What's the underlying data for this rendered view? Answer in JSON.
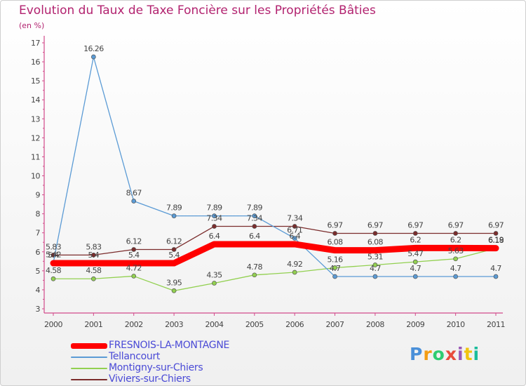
{
  "header": {
    "title": "Evolution du Taux de Taxe Foncière sur les Propriétés Bâties",
    "subtitle": "(en %)"
  },
  "logo": {
    "text": "Proxiti",
    "colors": [
      "#4a90d9",
      "#f39c12",
      "#2ecc71",
      "#e74c3c",
      "#9b59b6",
      "#f1c40f",
      "#1abc9c"
    ]
  },
  "chart_data": {
    "type": "line",
    "title": "Evolution du Taux de Taxe Foncière sur les Propriétés Bâties",
    "ylabel": "(en %)",
    "xlabel": "",
    "ylim": [
      3,
      17
    ],
    "yticks": [
      3,
      4,
      5,
      6,
      7,
      8,
      9,
      10,
      11,
      12,
      13,
      14,
      15,
      16,
      17
    ],
    "grid": false,
    "legend_position": "bottom-left",
    "categories": [
      "2000",
      "2001",
      "2002",
      "2003",
      "2004",
      "2005",
      "2006",
      "2007",
      "2008",
      "2009",
      "2010",
      "2011"
    ],
    "series": [
      {
        "name": "FRESNOIS-LA-MONTAGNE",
        "color": "#ff0000",
        "values": [
          5.4,
          5.4,
          5.4,
          5.4,
          6.4,
          6.4,
          6.4,
          6.08,
          6.08,
          6.2,
          6.2,
          6.19
        ],
        "labels": [
          "5.4",
          "5.4",
          "5.4",
          "5.4",
          "6.4",
          "6.4",
          "6.4",
          "6.08",
          "6.08",
          "6.2",
          "6.2",
          "6.19"
        ]
      },
      {
        "name": "Tellancourt",
        "color": "#5b9bd5",
        "values": [
          5.42,
          16.26,
          8.67,
          7.89,
          7.89,
          7.89,
          6.71,
          4.7,
          4.7,
          4.7,
          4.7,
          4.7
        ],
        "labels": [
          "5.42",
          "16.26",
          "8.67",
          "7.89",
          "7.89",
          "7.89",
          "6.71",
          "4.7",
          "4.7",
          "4.7",
          "4.7",
          "4.7"
        ]
      },
      {
        "name": "Montigny-sur-Chiers",
        "color": "#92d050",
        "values": [
          4.58,
          4.58,
          4.72,
          3.95,
          4.35,
          4.78,
          4.92,
          5.16,
          5.31,
          5.47,
          5.63,
          6.18
        ],
        "labels": [
          "4.58",
          "4.58",
          "4.72",
          "3.95",
          "4.35",
          "4.78",
          "4.92",
          "5.16",
          "5.31",
          "5.47",
          "5.63",
          "6.18"
        ]
      },
      {
        "name": "Viviers-sur-Chiers",
        "color": "#7b2c2c",
        "values": [
          5.83,
          5.83,
          6.12,
          6.12,
          7.34,
          7.34,
          7.34,
          6.97,
          6.97,
          6.97,
          6.97,
          6.97
        ],
        "labels": [
          "5.83",
          "5.83",
          "6.12",
          "6.12",
          "7.34",
          "7.34",
          "7.34",
          "6.97",
          "6.97",
          "6.97",
          "6.97",
          "6.97"
        ]
      }
    ]
  }
}
